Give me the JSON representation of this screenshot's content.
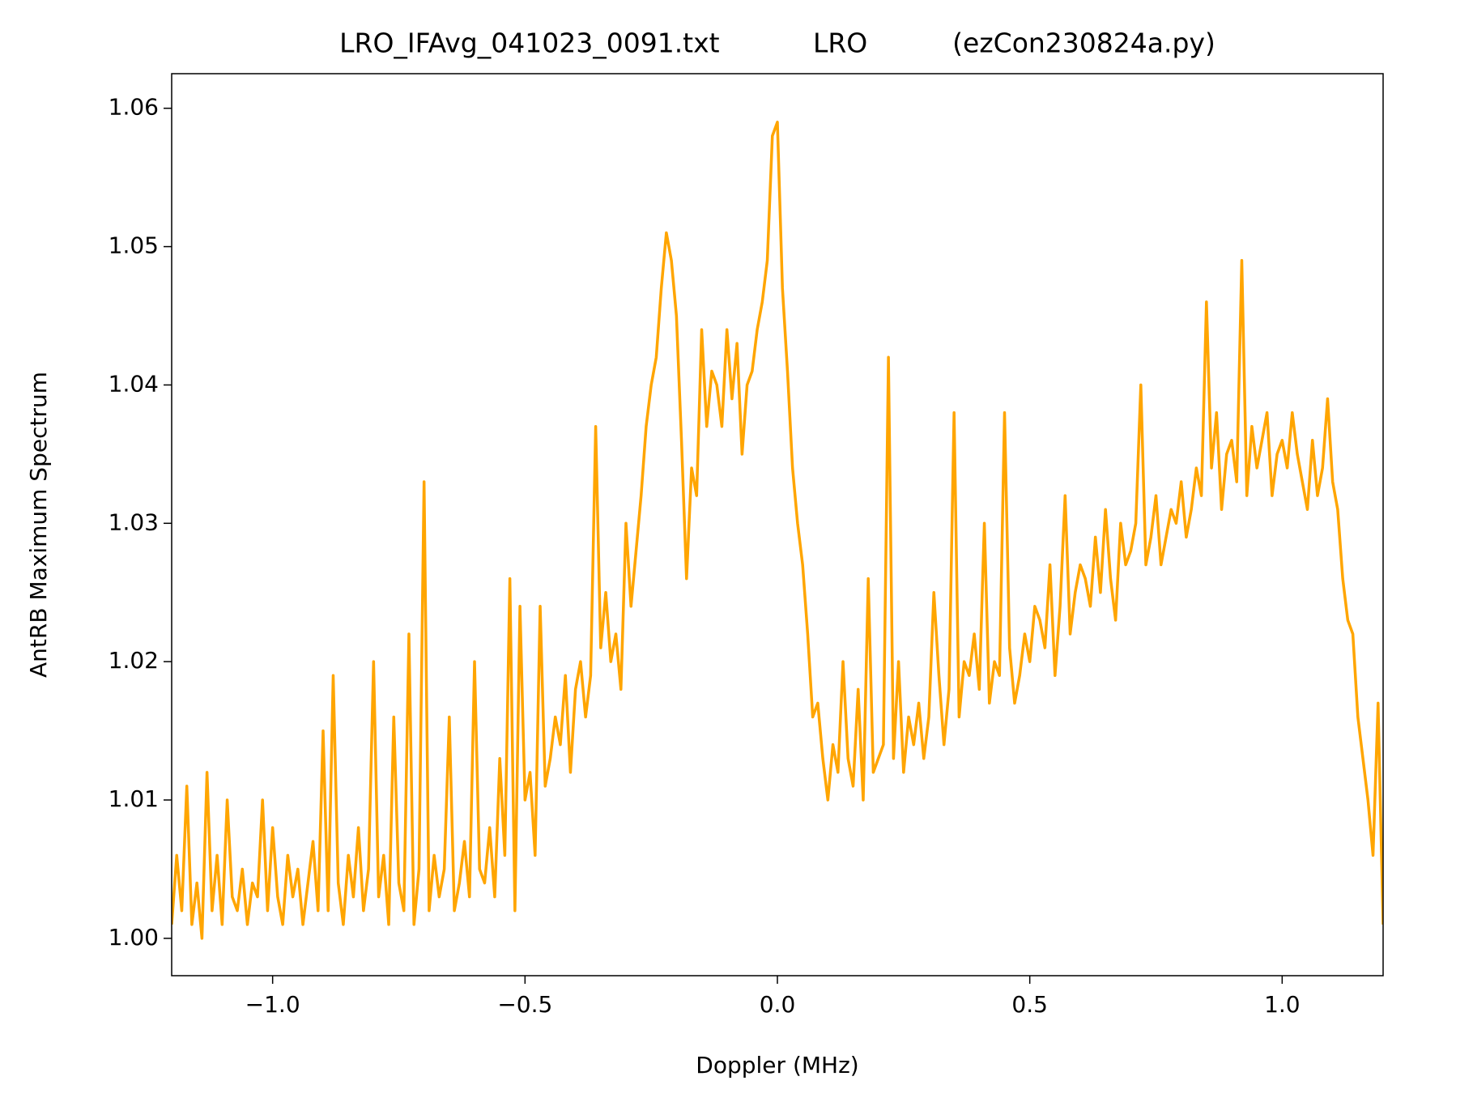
{
  "chart_data": {
    "type": "line",
    "title": "LRO_IFAvg_041023_0091.txt           LRO          (ezCon230824a.py)",
    "xlabel": "Doppler (MHz)",
    "ylabel": "AntRB Maximum Spectrum",
    "xlim": [
      -1.2,
      1.2
    ],
    "ylim": [
      0.9973,
      1.0625
    ],
    "xticks": [
      {
        "value": -1.0,
        "label": "−1.0"
      },
      {
        "value": -0.5,
        "label": "−0.5"
      },
      {
        "value": 0.0,
        "label": "0.0"
      },
      0.5,
      {
        "value": 1.0,
        "label": "1.0"
      }
    ],
    "yticks": [
      {
        "value": 1.0,
        "label": "1.00"
      },
      1.01,
      1.02,
      1.03,
      1.04,
      1.05,
      1.06
    ],
    "grid": false,
    "x": [
      -1.2,
      -1.19,
      -1.18,
      -1.17,
      -1.16,
      -1.15,
      -1.14,
      -1.13,
      -1.12,
      -1.11,
      -1.1,
      -1.09,
      -1.08,
      -1.07,
      -1.06,
      -1.05,
      -1.04,
      -1.03,
      -1.02,
      -1.01,
      -1.0,
      -0.99,
      -0.98,
      -0.97,
      -0.96,
      -0.95,
      -0.94,
      -0.93,
      -0.92,
      -0.91,
      -0.9,
      -0.89,
      -0.88,
      -0.87,
      -0.86,
      -0.85,
      -0.84,
      -0.83,
      -0.82,
      -0.81,
      -0.8,
      -0.79,
      -0.78,
      -0.77,
      -0.76,
      -0.75,
      -0.74,
      -0.73,
      -0.72,
      -0.71,
      -0.7,
      -0.69,
      -0.68,
      -0.67,
      -0.66,
      -0.65,
      -0.64,
      -0.63,
      -0.62,
      -0.61,
      -0.6,
      -0.59,
      -0.58,
      -0.57,
      -0.56,
      -0.55,
      -0.54,
      -0.53,
      -0.52,
      -0.51,
      -0.5,
      -0.49,
      -0.48,
      -0.47,
      -0.46,
      -0.45,
      -0.44,
      -0.43,
      -0.42,
      -0.41,
      -0.4,
      -0.39,
      -0.38,
      -0.37,
      -0.36,
      -0.35,
      -0.34,
      -0.33,
      -0.32,
      -0.31,
      -0.3,
      -0.29,
      -0.28,
      -0.27,
      -0.26,
      -0.25,
      -0.24,
      -0.23,
      -0.22,
      -0.21,
      -0.2,
      -0.19,
      -0.18,
      -0.17,
      -0.16,
      -0.15,
      -0.14,
      -0.13,
      -0.12,
      -0.11,
      -0.1,
      -0.09,
      -0.08,
      -0.07,
      -0.06,
      -0.05,
      -0.04,
      -0.03,
      -0.02,
      -0.01,
      0.0,
      0.01,
      0.02,
      0.03,
      0.04,
      0.05,
      0.06,
      0.07,
      0.08,
      0.09,
      0.1,
      0.11,
      0.12,
      0.13,
      0.14,
      0.15,
      0.16,
      0.17,
      0.18,
      0.19,
      0.2,
      0.21,
      0.22,
      0.23,
      0.24,
      0.25,
      0.26,
      0.27,
      0.28,
      0.29,
      0.3,
      0.31,
      0.32,
      0.33,
      0.34,
      0.35,
      0.36,
      0.37,
      0.38,
      0.39,
      0.4,
      0.41,
      0.42,
      0.43,
      0.44,
      0.45,
      0.46,
      0.47,
      0.48,
      0.49,
      0.5,
      0.51,
      0.52,
      0.53,
      0.54,
      0.55,
      0.56,
      0.57,
      0.58,
      0.59,
      0.6,
      0.61,
      0.62,
      0.63,
      0.64,
      0.65,
      0.66,
      0.67,
      0.68,
      0.69,
      0.7,
      0.71,
      0.72,
      0.73,
      0.74,
      0.75,
      0.76,
      0.77,
      0.78,
      0.79,
      0.8,
      0.81,
      0.82,
      0.83,
      0.84,
      0.85,
      0.86,
      0.87,
      0.88,
      0.89,
      0.9,
      0.91,
      0.92,
      0.93,
      0.94,
      0.95,
      0.96,
      0.97,
      0.98,
      0.99,
      1.0,
      1.01,
      1.02,
      1.03,
      1.04,
      1.05,
      1.06,
      1.07,
      1.08,
      1.09,
      1.1,
      1.11,
      1.12,
      1.13,
      1.14,
      1.15,
      1.16,
      1.17,
      1.18,
      1.19,
      1.2
    ],
    "series": [
      {
        "color": "#ffa500",
        "values": [
          1.001,
          1.006,
          1.002,
          1.011,
          1.001,
          1.004,
          1.0,
          1.012,
          1.002,
          1.006,
          1.001,
          1.01,
          1.003,
          1.002,
          1.005,
          1.001,
          1.004,
          1.003,
          1.01,
          1.002,
          1.008,
          1.003,
          1.001,
          1.006,
          1.003,
          1.005,
          1.001,
          1.004,
          1.007,
          1.002,
          1.015,
          1.002,
          1.019,
          1.004,
          1.001,
          1.006,
          1.003,
          1.008,
          1.002,
          1.005,
          1.02,
          1.003,
          1.006,
          1.001,
          1.016,
          1.004,
          1.002,
          1.022,
          1.001,
          1.005,
          1.033,
          1.002,
          1.006,
          1.003,
          1.005,
          1.016,
          1.002,
          1.004,
          1.007,
          1.003,
          1.02,
          1.005,
          1.004,
          1.008,
          1.003,
          1.013,
          1.006,
          1.026,
          1.002,
          1.024,
          1.01,
          1.012,
          1.006,
          1.024,
          1.011,
          1.013,
          1.016,
          1.014,
          1.019,
          1.012,
          1.018,
          1.02,
          1.016,
          1.019,
          1.037,
          1.021,
          1.025,
          1.02,
          1.022,
          1.018,
          1.03,
          1.024,
          1.028,
          1.032,
          1.037,
          1.04,
          1.042,
          1.047,
          1.051,
          1.049,
          1.045,
          1.036,
          1.026,
          1.034,
          1.032,
          1.044,
          1.037,
          1.041,
          1.04,
          1.037,
          1.044,
          1.039,
          1.043,
          1.035,
          1.04,
          1.041,
          1.044,
          1.046,
          1.049,
          1.058,
          1.059,
          1.047,
          1.041,
          1.034,
          1.03,
          1.027,
          1.022,
          1.016,
          1.017,
          1.013,
          1.01,
          1.014,
          1.012,
          1.02,
          1.013,
          1.011,
          1.018,
          1.01,
          1.026,
          1.012,
          1.013,
          1.014,
          1.042,
          1.013,
          1.02,
          1.012,
          1.016,
          1.014,
          1.017,
          1.013,
          1.016,
          1.025,
          1.019,
          1.014,
          1.018,
          1.038,
          1.016,
          1.02,
          1.019,
          1.022,
          1.018,
          1.03,
          1.017,
          1.02,
          1.019,
          1.038,
          1.021,
          1.017,
          1.019,
          1.022,
          1.02,
          1.024,
          1.023,
          1.021,
          1.027,
          1.019,
          1.024,
          1.032,
          1.022,
          1.025,
          1.027,
          1.026,
          1.024,
          1.029,
          1.025,
          1.031,
          1.026,
          1.023,
          1.03,
          1.027,
          1.028,
          1.03,
          1.04,
          1.027,
          1.029,
          1.032,
          1.027,
          1.029,
          1.031,
          1.03,
          1.033,
          1.029,
          1.031,
          1.034,
          1.032,
          1.046,
          1.034,
          1.038,
          1.031,
          1.035,
          1.036,
          1.033,
          1.049,
          1.032,
          1.037,
          1.034,
          1.036,
          1.038,
          1.032,
          1.035,
          1.036,
          1.034,
          1.038,
          1.035,
          1.033,
          1.031,
          1.036,
          1.032,
          1.034,
          1.039,
          1.033,
          1.031,
          1.026,
          1.023,
          1.022,
          1.016,
          1.013,
          1.01,
          1.006,
          1.017,
          1.001
        ]
      }
    ]
  }
}
